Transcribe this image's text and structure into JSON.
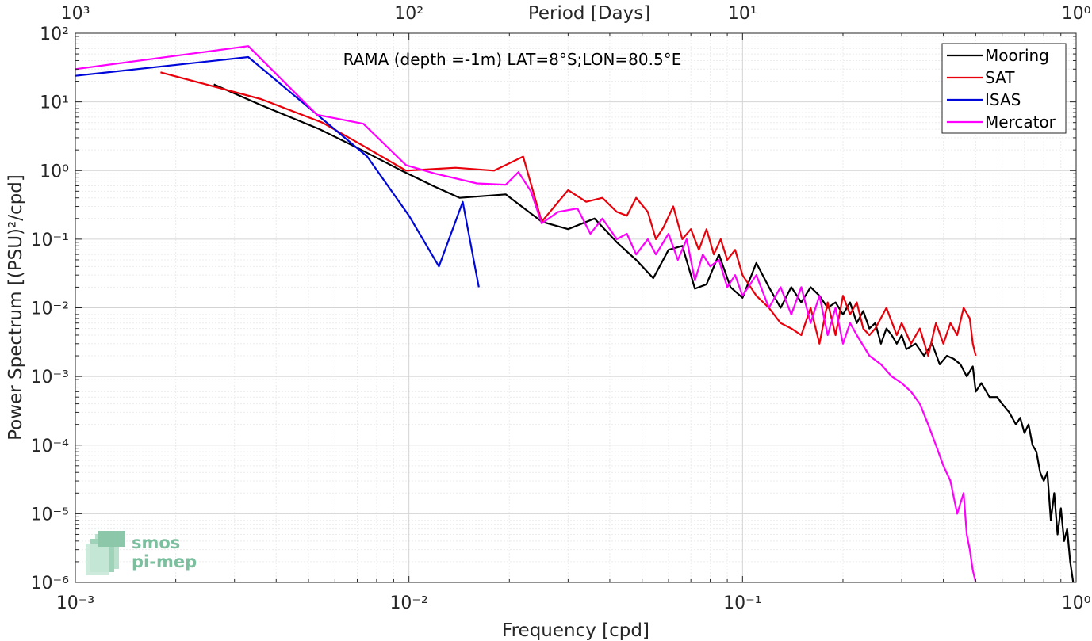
{
  "chart_data": {
    "type": "line",
    "title": "RAMA (depth =-1m) LAT=8°S;LON=80.5°E",
    "xlabel": "Frequency [cpd]",
    "ylabel": "Power Spectrum [(PSU)²/cpd]",
    "x2label": "Period [Days]",
    "xscale": "log",
    "yscale": "log",
    "xlim": [
      0.001,
      1
    ],
    "ylim": [
      1e-06,
      100
    ],
    "grid": true,
    "legend_position": "top-right",
    "x_ticks": [
      "10⁻³",
      "10⁻²",
      "10⁻¹",
      "10⁰"
    ],
    "x_ticks_top": [
      "10³",
      "10²",
      "10¹",
      "10⁰"
    ],
    "y_ticks": [
      "10⁻⁶",
      "10⁻⁵",
      "10⁻⁴",
      "10⁻³",
      "10⁻²",
      "10⁻¹",
      "10⁰",
      "10¹",
      "10²"
    ],
    "series": [
      {
        "name": "Mooring",
        "color": "#000000",
        "x": [
          0.0026,
          0.0036,
          0.0054,
          0.0072,
          0.0095,
          0.0118,
          0.0142,
          0.0195,
          0.025,
          0.03,
          0.036,
          0.042,
          0.048,
          0.054,
          0.06,
          0.066,
          0.072,
          0.078,
          0.085,
          0.092,
          0.1,
          0.11,
          0.12,
          0.13,
          0.14,
          0.15,
          0.16,
          0.17,
          0.18,
          0.19,
          0.2,
          0.21,
          0.22,
          0.23,
          0.24,
          0.25,
          0.26,
          0.27,
          0.28,
          0.29,
          0.3,
          0.31,
          0.33,
          0.35,
          0.37,
          0.39,
          0.41,
          0.43,
          0.45,
          0.47,
          0.49,
          0.5,
          0.52,
          0.55,
          0.58,
          0.6,
          0.63,
          0.66,
          0.68,
          0.7,
          0.72,
          0.74,
          0.76,
          0.78,
          0.8,
          0.82,
          0.84,
          0.86,
          0.88,
          0.9,
          0.92,
          0.94,
          0.96,
          0.98
        ],
        "y": [
          18,
          9,
          4,
          2,
          1,
          0.6,
          0.4,
          0.45,
          0.18,
          0.14,
          0.2,
          0.09,
          0.05,
          0.027,
          0.07,
          0.08,
          0.019,
          0.022,
          0.06,
          0.02,
          0.014,
          0.045,
          0.02,
          0.01,
          0.02,
          0.012,
          0.02,
          0.015,
          0.01,
          0.012,
          0.008,
          0.012,
          0.006,
          0.009,
          0.005,
          0.006,
          0.003,
          0.005,
          0.004,
          0.003,
          0.004,
          0.0025,
          0.003,
          0.002,
          0.003,
          0.0015,
          0.002,
          0.0018,
          0.0015,
          0.001,
          0.0014,
          0.0006,
          0.0008,
          0.0005,
          0.0005,
          0.0004,
          0.0003,
          0.0002,
          0.00025,
          0.00015,
          0.0002,
          0.0001,
          8e-05,
          4e-05,
          3e-05,
          4e-05,
          8e-06,
          2e-05,
          5e-06,
          1.2e-05,
          4e-06,
          6e-06,
          2e-06,
          1e-06
        ]
      },
      {
        "name": "SAT",
        "color": "#e8000b",
        "x": [
          0.0018,
          0.0036,
          0.0055,
          0.0074,
          0.0098,
          0.0118,
          0.0138,
          0.018,
          0.022,
          0.025,
          0.03,
          0.034,
          0.038,
          0.042,
          0.045,
          0.048,
          0.052,
          0.055,
          0.058,
          0.062,
          0.066,
          0.07,
          0.074,
          0.078,
          0.082,
          0.086,
          0.09,
          0.095,
          0.1,
          0.11,
          0.12,
          0.13,
          0.14,
          0.15,
          0.16,
          0.17,
          0.18,
          0.19,
          0.2,
          0.21,
          0.22,
          0.23,
          0.24,
          0.25,
          0.27,
          0.29,
          0.3,
          0.32,
          0.34,
          0.36,
          0.38,
          0.4,
          0.42,
          0.44,
          0.46,
          0.48,
          0.49,
          0.5
        ],
        "y": [
          27,
          11,
          5,
          2.2,
          1,
          1.05,
          1.1,
          1,
          1.6,
          0.18,
          0.52,
          0.35,
          0.4,
          0.25,
          0.22,
          0.4,
          0.25,
          0.1,
          0.15,
          0.3,
          0.1,
          0.14,
          0.07,
          0.14,
          0.06,
          0.1,
          0.05,
          0.07,
          0.03,
          0.015,
          0.01,
          0.006,
          0.005,
          0.004,
          0.01,
          0.003,
          0.012,
          0.004,
          0.015,
          0.008,
          0.012,
          0.005,
          0.004,
          0.005,
          0.01,
          0.004,
          0.006,
          0.003,
          0.005,
          0.002,
          0.006,
          0.003,
          0.006,
          0.004,
          0.01,
          0.007,
          0.003,
          0.002
        ]
      },
      {
        "name": "ISAS",
        "color": "#0008d9",
        "x": [
          0.001,
          0.0033,
          0.0075,
          0.01,
          0.0123,
          0.0145,
          0.0162
        ],
        "y": [
          24,
          45,
          1.6,
          0.22,
          0.04,
          0.35,
          0.02
        ]
      },
      {
        "name": "Mercator",
        "color": "#ff00ff",
        "x": [
          0.001,
          0.0033,
          0.0053,
          0.0073,
          0.0098,
          0.012,
          0.016,
          0.0195,
          0.0213,
          0.0232,
          0.025,
          0.028,
          0.032,
          0.035,
          0.038,
          0.042,
          0.045,
          0.048,
          0.052,
          0.055,
          0.06,
          0.064,
          0.068,
          0.072,
          0.076,
          0.08,
          0.085,
          0.09,
          0.095,
          0.1,
          0.11,
          0.12,
          0.13,
          0.14,
          0.15,
          0.16,
          0.17,
          0.18,
          0.19,
          0.2,
          0.21,
          0.22,
          0.24,
          0.26,
          0.28,
          0.3,
          0.32,
          0.34,
          0.36,
          0.38,
          0.4,
          0.42,
          0.44,
          0.46,
          0.47,
          0.48,
          0.49,
          0.5
        ],
        "y": [
          30,
          65,
          6.5,
          4.8,
          1.2,
          0.9,
          0.65,
          0.62,
          0.95,
          0.5,
          0.17,
          0.25,
          0.28,
          0.12,
          0.2,
          0.1,
          0.12,
          0.06,
          0.1,
          0.06,
          0.12,
          0.05,
          0.1,
          0.025,
          0.06,
          0.04,
          0.05,
          0.02,
          0.03,
          0.015,
          0.03,
          0.01,
          0.02,
          0.008,
          0.02,
          0.006,
          0.015,
          0.004,
          0.01,
          0.003,
          0.006,
          0.004,
          0.002,
          0.0015,
          0.001,
          0.0008,
          0.0006,
          0.0004,
          0.0002,
          0.0001,
          5e-05,
          3e-05,
          1e-05,
          2e-05,
          5e-06,
          3e-06,
          1.5e-06,
          1e-06
        ]
      }
    ]
  },
  "logo": {
    "line1": "smos",
    "line2": "pi-mep"
  }
}
